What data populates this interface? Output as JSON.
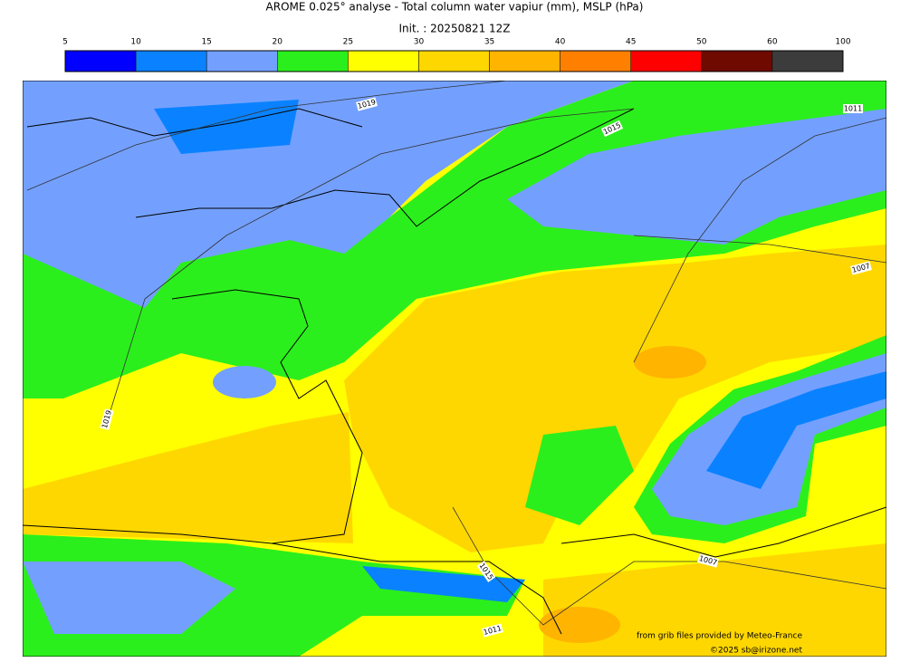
{
  "header": {
    "title": "AROME 0.025° analyse - Total column water vapiur (mm), MSLP (hPa)",
    "subtitle": "Init. : 20250821 12Z"
  },
  "colorbar": {
    "levels": [
      5,
      10,
      15,
      20,
      25,
      30,
      35,
      40,
      45,
      50,
      60,
      100
    ],
    "colors": [
      "#0000fe",
      "#0a82ff",
      "#73a0ff",
      "#2bef1c",
      "#ffff00",
      "#ffd700",
      "#ffb400",
      "#ff8000",
      "#ff0000",
      "#6e0a00",
      "#3c3c3c"
    ]
  },
  "map": {
    "isobar_labels": [
      "1019",
      "1015",
      "1011",
      "1019",
      "1007",
      "1015",
      "1007",
      "1011"
    ],
    "credits": [
      "from grib files provided by Meteo-France",
      "©2025 sb@irizone.net"
    ]
  }
}
